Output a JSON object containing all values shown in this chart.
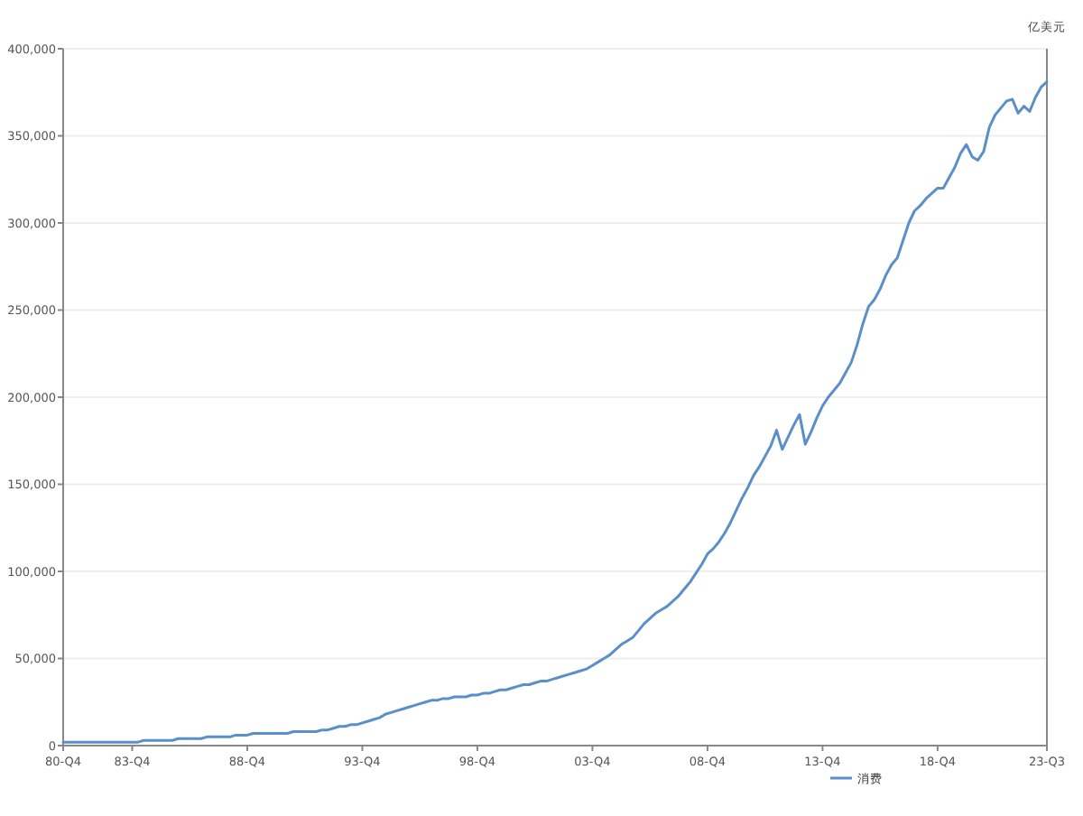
{
  "chart_data": {
    "type": "line",
    "ylabel": "亿美元",
    "categories": [
      "80-Q4",
      null,
      null,
      null,
      null,
      null,
      null,
      null,
      null,
      null,
      null,
      null,
      "83-Q4",
      null,
      null,
      null,
      null,
      null,
      null,
      null,
      null,
      null,
      null,
      null,
      null,
      null,
      null,
      null,
      null,
      null,
      null,
      null,
      "88-Q4",
      null,
      null,
      null,
      null,
      null,
      null,
      null,
      null,
      null,
      null,
      null,
      null,
      null,
      null,
      null,
      null,
      null,
      null,
      null,
      "93-Q4",
      null,
      null,
      null,
      null,
      null,
      null,
      null,
      null,
      null,
      null,
      null,
      null,
      null,
      null,
      null,
      null,
      null,
      null,
      null,
      "98-Q4",
      null,
      null,
      null,
      null,
      null,
      null,
      null,
      null,
      null,
      null,
      null,
      null,
      null,
      null,
      null,
      null,
      null,
      null,
      null,
      "03-Q4",
      null,
      null,
      null,
      null,
      null,
      null,
      null,
      null,
      null,
      null,
      null,
      null,
      null,
      null,
      null,
      null,
      null,
      null,
      null,
      "08-Q4",
      null,
      null,
      null,
      null,
      null,
      null,
      null,
      null,
      null,
      null,
      null,
      null,
      null,
      null,
      null,
      null,
      null,
      null,
      null,
      "13-Q4",
      null,
      null,
      null,
      null,
      null,
      null,
      null,
      null,
      null,
      null,
      null,
      null,
      null,
      null,
      null,
      null,
      null,
      null,
      null,
      "18-Q4",
      null,
      null,
      null,
      null,
      null,
      null,
      null,
      null,
      null,
      null,
      null,
      null,
      null,
      null,
      null,
      null,
      null,
      null,
      "23-Q3"
    ],
    "series": [
      {
        "name": "消费",
        "color": "#5b8fc9",
        "values": [
          2000,
          2000,
          2000,
          2000,
          2000,
          2000,
          2000,
          2000,
          2000,
          2000,
          2000,
          2000,
          2000,
          2000,
          3000,
          3000,
          3000,
          3000,
          3000,
          3000,
          4000,
          4000,
          4000,
          4000,
          4000,
          5000,
          5000,
          5000,
          5000,
          5000,
          6000,
          6000,
          6000,
          7000,
          7000,
          7000,
          7000,
          7000,
          7000,
          7000,
          8000,
          8000,
          8000,
          8000,
          8000,
          9000,
          9000,
          10000,
          11000,
          11000,
          12000,
          12000,
          13000,
          14000,
          15000,
          16000,
          18000,
          19000,
          20000,
          21000,
          22000,
          23000,
          24000,
          25000,
          26000,
          26000,
          27000,
          27000,
          28000,
          28000,
          28000,
          29000,
          29000,
          30000,
          30000,
          31000,
          32000,
          32000,
          33000,
          34000,
          35000,
          35000,
          36000,
          37000,
          37000,
          38000,
          39000,
          40000,
          41000,
          42000,
          43000,
          44000,
          46000,
          48000,
          50000,
          52000,
          55000,
          58000,
          60000,
          62000,
          66000,
          70000,
          73000,
          76000,
          78000,
          80000,
          83000,
          86000,
          90000,
          94000,
          99000,
          104000,
          110000,
          113000,
          117000,
          122000,
          128000,
          135000,
          142000,
          148000,
          155000,
          160000,
          166000,
          172000,
          181000,
          170000,
          177000,
          184000,
          190000,
          173000,
          180000,
          188000,
          195000,
          200000,
          204000,
          208000,
          214000,
          220000,
          230000,
          242000,
          252000,
          256000,
          262000,
          270000,
          276000,
          280000,
          290000,
          300000,
          307000,
          310000,
          314000,
          317000,
          320000,
          320000,
          326000,
          332000,
          340000,
          345000,
          338000,
          336000,
          341000,
          355000,
          362000,
          366000,
          370000,
          371000,
          363000,
          367000,
          364000,
          372000,
          378000,
          381000
        ]
      }
    ],
    "ylim": [
      0,
      400000
    ],
    "yticks": [
      {
        "value": 0,
        "label": "0"
      },
      {
        "value": 50000,
        "label": "50,000"
      },
      {
        "value": 100000,
        "label": "100,000"
      },
      {
        "value": 150000,
        "label": "150,000"
      },
      {
        "value": 200000,
        "label": "200,000"
      },
      {
        "value": 250000,
        "label": "250,000"
      },
      {
        "value": 300000,
        "label": "300,000"
      },
      {
        "value": 350000,
        "label": "350,000"
      },
      {
        "value": 400000,
        "label": "400,000"
      }
    ],
    "grid": "y",
    "legend": "bottom",
    "marker": "none",
    "line_style": "solid"
  }
}
